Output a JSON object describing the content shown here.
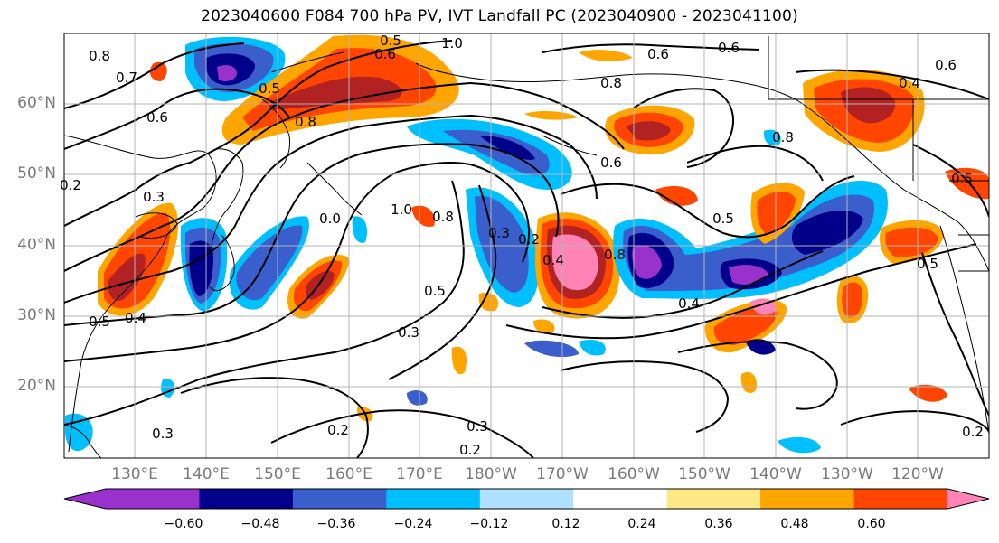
{
  "title": "2023040600 F084 700 hPa PV, IVT Landfall PC (2023040900 - 2023041100)",
  "map": {
    "projection": "plate carree",
    "region": "North Pacific",
    "lon_range": [
      "125°E",
      "110°W"
    ],
    "lat_range": [
      "10°N",
      "70°N"
    ],
    "gridlines": true,
    "filled_field": "IVT Landfall PC",
    "contour_field": "700 hPa PV",
    "contour_color": "#000000",
    "coastline_color": "#000000"
  },
  "lat_labels": [
    "60°N",
    "50°N",
    "40°N",
    "30°N",
    "20°N"
  ],
  "lon_labels": [
    "130°E",
    "140°E",
    "150°E",
    "160°E",
    "170°E",
    "180°W",
    "170°W",
    "160°W",
    "150°W",
    "140°W",
    "130°W",
    "120°W"
  ],
  "contour_labels": [
    {
      "text": "0.8",
      "region": "NW corner"
    },
    {
      "text": "0.7",
      "region": "Sea of Okhotsk"
    },
    {
      "text": "0.6",
      "region": "Kamchatka"
    },
    {
      "text": "0.5",
      "region": "Kamchatka east"
    },
    {
      "text": "0.8",
      "region": "Kuril"
    },
    {
      "text": "0.5",
      "region": "Bering north"
    },
    {
      "text": "0.6",
      "region": "Bering north"
    },
    {
      "text": "1.0",
      "region": "Bering"
    },
    {
      "text": "0.8",
      "region": "Aleutians"
    },
    {
      "text": "0.6",
      "region": "Gulf of Alaska north"
    },
    {
      "text": "0.6",
      "region": "Alaska"
    },
    {
      "text": "0.4",
      "region": "Yukon"
    },
    {
      "text": "0.8",
      "region": "Alaska panhandle"
    },
    {
      "text": "0.6",
      "region": "Aleutian south"
    },
    {
      "text": "0.6",
      "region": "Gulf of Alaska"
    },
    {
      "text": "0.5",
      "region": "Gulf of Alaska"
    },
    {
      "text": "0.5",
      "region": "BC coast"
    },
    {
      "text": "0.2",
      "region": "West edge"
    },
    {
      "text": "0.3",
      "region": "Japan"
    },
    {
      "text": "1.0",
      "region": "Central Pacific"
    },
    {
      "text": "0.8",
      "region": "Central Pacific"
    },
    {
      "text": "0.3",
      "region": "Dateline"
    },
    {
      "text": "0.2",
      "region": "Dateline"
    },
    {
      "text": "0.4",
      "region": "Dateline east"
    },
    {
      "text": "0.8",
      "region": "Hawaii north"
    },
    {
      "text": "0.4",
      "region": "Subtropics"
    },
    {
      "text": "0.5",
      "region": "Subtropics"
    },
    {
      "text": "0.3",
      "region": "Subtropics"
    },
    {
      "text": "0.5",
      "region": "China coast"
    },
    {
      "text": "0.4",
      "region": "China coast"
    },
    {
      "text": "0.3",
      "region": "South Pacific west"
    },
    {
      "text": "0.2",
      "region": "South central"
    },
    {
      "text": "0.3",
      "region": "South central"
    },
    {
      "text": "0.2",
      "region": "South central"
    },
    {
      "text": "0.2",
      "region": "Baja"
    },
    {
      "text": "0.5",
      "region": "California"
    },
    {
      "text": "0.0",
      "region": "Japan east"
    }
  ],
  "colorbar": {
    "ticks": [
      "−0.60",
      "−0.48",
      "−0.36",
      "−0.24",
      "−0.12",
      "0.12",
      "0.24",
      "0.36",
      "0.48",
      "0.60"
    ],
    "colors": [
      "#9932cc",
      "#00008b",
      "#3a5fcd",
      "#00bfff",
      "#b0e0ff",
      "#ffffff",
      "#ffe987",
      "#ffa500",
      "#ff4500",
      "#b22222",
      "#ff83b5"
    ]
  }
}
